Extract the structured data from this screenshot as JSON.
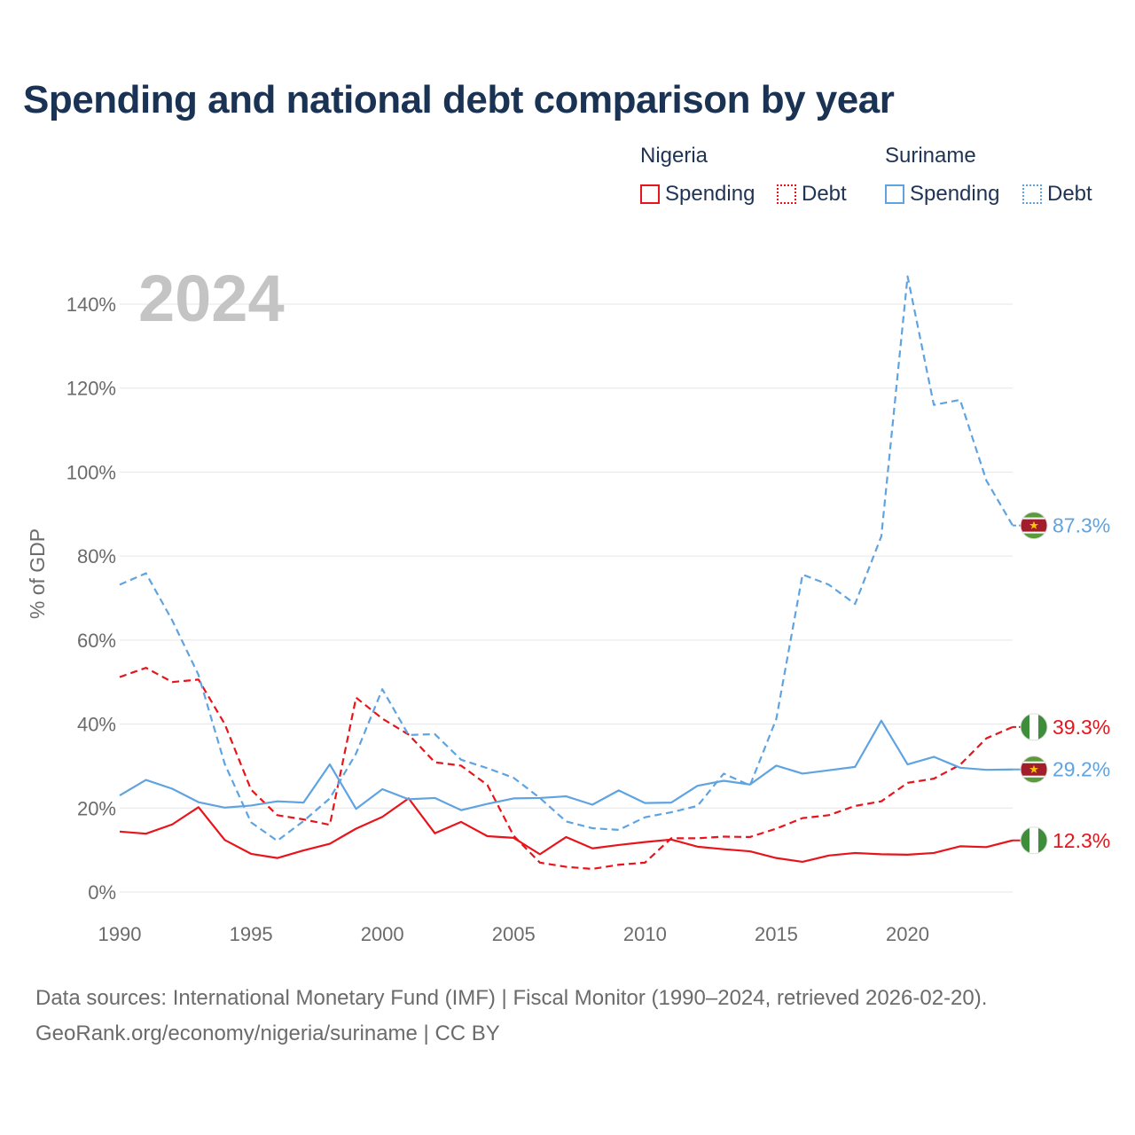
{
  "title": "Spending and national debt comparison by year",
  "legend": {
    "groups": [
      {
        "country": "Nigeria",
        "color": "#e8141b",
        "items": [
          {
            "label": "Spending",
            "style": "solid"
          },
          {
            "label": "Debt",
            "style": "dotted"
          }
        ]
      },
      {
        "country": "Suriname",
        "color": "#5fa3e0",
        "items": [
          {
            "label": "Spending",
            "style": "solid"
          },
          {
            "label": "Debt",
            "style": "dotted"
          }
        ]
      }
    ]
  },
  "year_watermark": "2024",
  "source": {
    "line1": "Data sources: International Monetary Fund (IMF) | Fiscal Monitor (1990–2024, retrieved 2026-02-20).",
    "line2": "GeoRank.org/economy/nigeria/suriname | CC BY"
  },
  "chart_data": {
    "type": "line",
    "title": "Spending and national debt comparison by year",
    "xlabel": "",
    "ylabel": "% of GDP",
    "xlim": [
      1990,
      2024
    ],
    "ylim": [
      0,
      140
    ],
    "x_ticks": [
      1990,
      1995,
      2000,
      2005,
      2010,
      2015,
      2020
    ],
    "y_ticks": [
      0,
      20,
      40,
      60,
      80,
      100,
      120,
      140
    ],
    "y_tick_labels": [
      "0%",
      "20%",
      "40%",
      "60%",
      "80%",
      "100%",
      "120%",
      "140%"
    ],
    "x_tick_labels": [
      "1990",
      "1995",
      "2000",
      "2005",
      "2010",
      "2015",
      "2020"
    ],
    "grid": true,
    "x": [
      1990,
      1991,
      1992,
      1993,
      1994,
      1995,
      1996,
      1997,
      1998,
      1999,
      2000,
      2001,
      2002,
      2003,
      2004,
      2005,
      2006,
      2007,
      2008,
      2009,
      2010,
      2011,
      2012,
      2013,
      2014,
      2015,
      2016,
      2017,
      2018,
      2019,
      2020,
      2021,
      2022,
      2023,
      2024
    ],
    "series": [
      {
        "name": "Nigeria Spending",
        "country": "Nigeria",
        "color": "#e8141b",
        "dash": false,
        "end_label": "12.3%",
        "values": [
          14.4,
          13.9,
          16.1,
          20.2,
          12.4,
          9.1,
          8.1,
          9.9,
          11.5,
          15.1,
          17.9,
          22.3,
          14.0,
          16.7,
          13.3,
          12.9,
          9.0,
          13.1,
          10.4,
          11.2,
          11.9,
          12.5,
          10.8,
          10.2,
          9.7,
          8.1,
          7.2,
          8.7,
          9.3,
          9.0,
          8.9,
          9.3,
          10.9,
          10.7,
          12.3
        ]
      },
      {
        "name": "Nigeria Debt",
        "country": "Nigeria",
        "color": "#e8141b",
        "dash": true,
        "end_label": "39.3%",
        "values": [
          51.2,
          53.4,
          50.0,
          50.6,
          40.0,
          24.4,
          18.3,
          17.3,
          16.0,
          46.3,
          41.3,
          37.5,
          30.9,
          30.1,
          25.5,
          13.4,
          7.0,
          6.0,
          5.5,
          6.5,
          7.0,
          12.8,
          12.8,
          13.2,
          13.1,
          15.1,
          17.6,
          18.3,
          20.5,
          21.6,
          26.0,
          27.0,
          30.3,
          36.6,
          39.3
        ]
      },
      {
        "name": "Suriname Spending",
        "country": "Suriname",
        "color": "#5fa3e0",
        "dash": false,
        "end_label": "29.2%",
        "values": [
          23.0,
          26.7,
          24.6,
          21.4,
          20.1,
          20.6,
          21.6,
          21.3,
          30.4,
          19.8,
          24.5,
          22.1,
          22.4,
          19.5,
          21.0,
          22.3,
          22.4,
          22.8,
          20.8,
          24.2,
          21.2,
          21.3,
          25.3,
          26.5,
          25.6,
          30.1,
          28.2,
          29.0,
          29.8,
          40.8,
          30.4,
          32.2,
          29.6,
          29.1,
          29.2
        ]
      },
      {
        "name": "Suriname Debt",
        "country": "Suriname",
        "color": "#5fa3e0",
        "dash": true,
        "end_label": "87.3%",
        "values": [
          73.2,
          75.9,
          64.7,
          51.7,
          30.5,
          16.6,
          12.2,
          16.9,
          22.3,
          33.0,
          48.3,
          37.4,
          37.6,
          31.5,
          29.5,
          27.2,
          22.4,
          16.8,
          15.2,
          14.8,
          17.8,
          19.0,
          20.5,
          28.2,
          25.4,
          41.2,
          75.6,
          73.2,
          68.6,
          84.7,
          146.6,
          116.0,
          117.2,
          98.0,
          87.3
        ]
      }
    ]
  }
}
